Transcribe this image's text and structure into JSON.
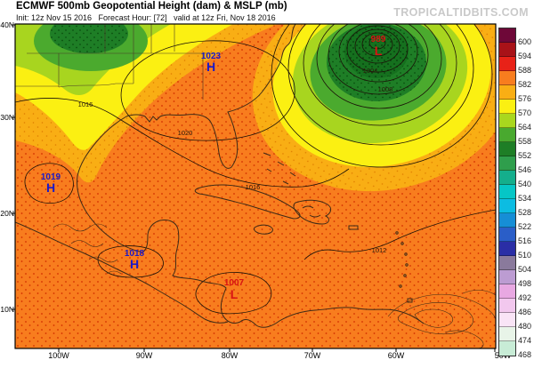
{
  "header": {
    "title": "ECMWF 500mb Geopotential Height (dam) & MSLP (mb)",
    "subtitle": "Init: 12z Nov 15 2016   Forecast Hour: [72]   valid at 12z Fri, Nov 18 2016",
    "watermark": "TROPICALTIDBITS.COM"
  },
  "axes": {
    "lat": [
      "40N",
      "30N",
      "20N",
      "10N"
    ],
    "lon": [
      "100W",
      "90W",
      "80W",
      "70W",
      "60W",
      "50W"
    ]
  },
  "colorbar": {
    "labels": [
      "600",
      "594",
      "588",
      "582",
      "576",
      "570",
      "564",
      "558",
      "552",
      "546",
      "540",
      "534",
      "528",
      "522",
      "516",
      "510",
      "504",
      "498",
      "492",
      "486",
      "480",
      "474",
      "468"
    ],
    "colors": [
      "#6E0838",
      "#A81218",
      "#E82218",
      "#F87D1E",
      "#F9AE14",
      "#FBF012",
      "#A9D71E",
      "#49A92F",
      "#1E7E26",
      "#2F9E4C",
      "#14AE8C",
      "#06C6C6",
      "#0CBCE2",
      "#168ED6",
      "#2A5EC8",
      "#2A2EA6",
      "#8A7A9C",
      "#BC9CD2",
      "#E8A8E2",
      "#F2C8EE",
      "#F9E4F6",
      "#E8F4E8",
      "#C8ECD6"
    ]
  },
  "map": {
    "markers": [
      {
        "value": "1023",
        "letter": "H",
        "kind": "high"
      },
      {
        "value": "1019",
        "letter": "H",
        "kind": "high"
      },
      {
        "value": "1018",
        "letter": "H",
        "kind": "high"
      },
      {
        "value": "989",
        "letter": "L",
        "kind": "low"
      },
      {
        "value": "1007",
        "letter": "L",
        "kind": "low"
      }
    ],
    "isobar_labels": [
      "1016",
      "1020",
      "1016",
      "1004",
      "1008",
      "1012"
    ]
  },
  "colors": {
    "map_base_orange": "#F87D1E",
    "stipple_red": "#D22F00",
    "band_gold": "#F9AE14",
    "band_yellow": "#FBF012",
    "band_yellow_green": "#A8D51F",
    "band_green": "#4BAA2E",
    "band_dark_green": "#1E7E26",
    "band_core_green": "#15701E",
    "high_marker_blue": "#1A1AC8",
    "low_marker_red": "#D81414",
    "isobar_line": "#1B1208",
    "coastline": "#3F2B16",
    "watermark_gray": "#C9C9C9"
  }
}
